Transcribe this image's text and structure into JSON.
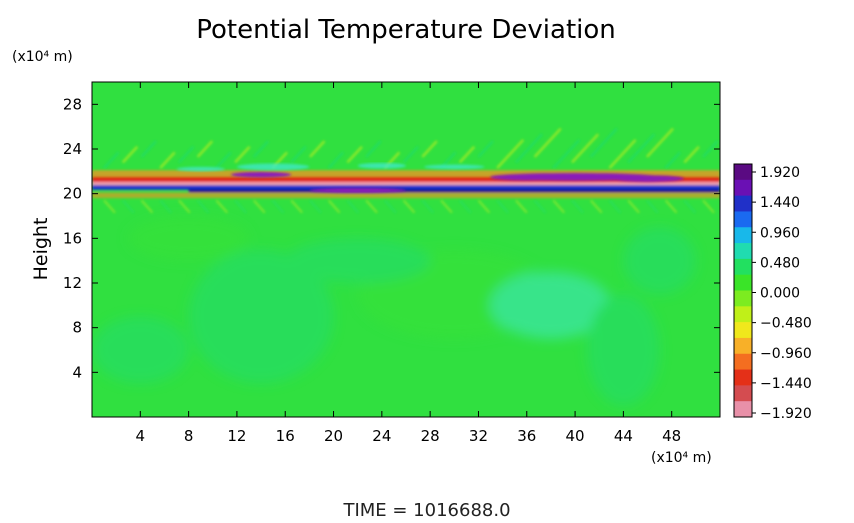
{
  "chart_data": {
    "type": "heatmap",
    "title": "Potential Temperature Deviation",
    "ylabel": "Height",
    "x_unit": "(x10⁴ m)",
    "y_unit": "(x10⁴ m)",
    "xlim": [
      0,
      52
    ],
    "ylim": [
      0,
      30
    ],
    "x_ticks": [
      4,
      8,
      12,
      16,
      20,
      24,
      28,
      32,
      36,
      40,
      44,
      48
    ],
    "y_ticks": [
      4,
      8,
      12,
      16,
      20,
      24,
      28
    ],
    "x_tick_labels": [
      "4",
      "8",
      "12",
      "16",
      "20",
      "24",
      "28",
      "32",
      "36",
      "40",
      "44",
      "48"
    ],
    "y_tick_labels": [
      "4",
      "8",
      "12",
      "16",
      "20",
      "24",
      "28"
    ],
    "colorbar": {
      "min": -1.92,
      "max": 1.92,
      "labels": [
        "1.920",
        "1.440",
        "0.960",
        "0.480",
        "0.000",
        "−0.480",
        "−0.960",
        "−1.440",
        "−1.920"
      ],
      "colors": [
        "#5a0a82",
        "#6a10b4",
        "#2030c8",
        "#1a6af0",
        "#18b8ea",
        "#20dcb0",
        "#22e060",
        "#3ae428",
        "#7cec20",
        "#c0f018",
        "#f0e81c",
        "#f8b028",
        "#f46e20",
        "#e43018",
        "#d44c50",
        "#e890a8"
      ]
    },
    "field_colors": {
      "background": "#30e040",
      "neutral_green": "#38e238",
      "cool_green": "#20dc70",
      "light_cyan": "#40e8c8",
      "warm_yellow": "#c8f020",
      "orange": "#f89020",
      "red": "#e02818",
      "pink": "#f2a0b0",
      "blue": "#1830d0",
      "dark_blue": "#101890",
      "purple": "#8a1cb8"
    },
    "time_label": "TIME = 1016688.0"
  }
}
